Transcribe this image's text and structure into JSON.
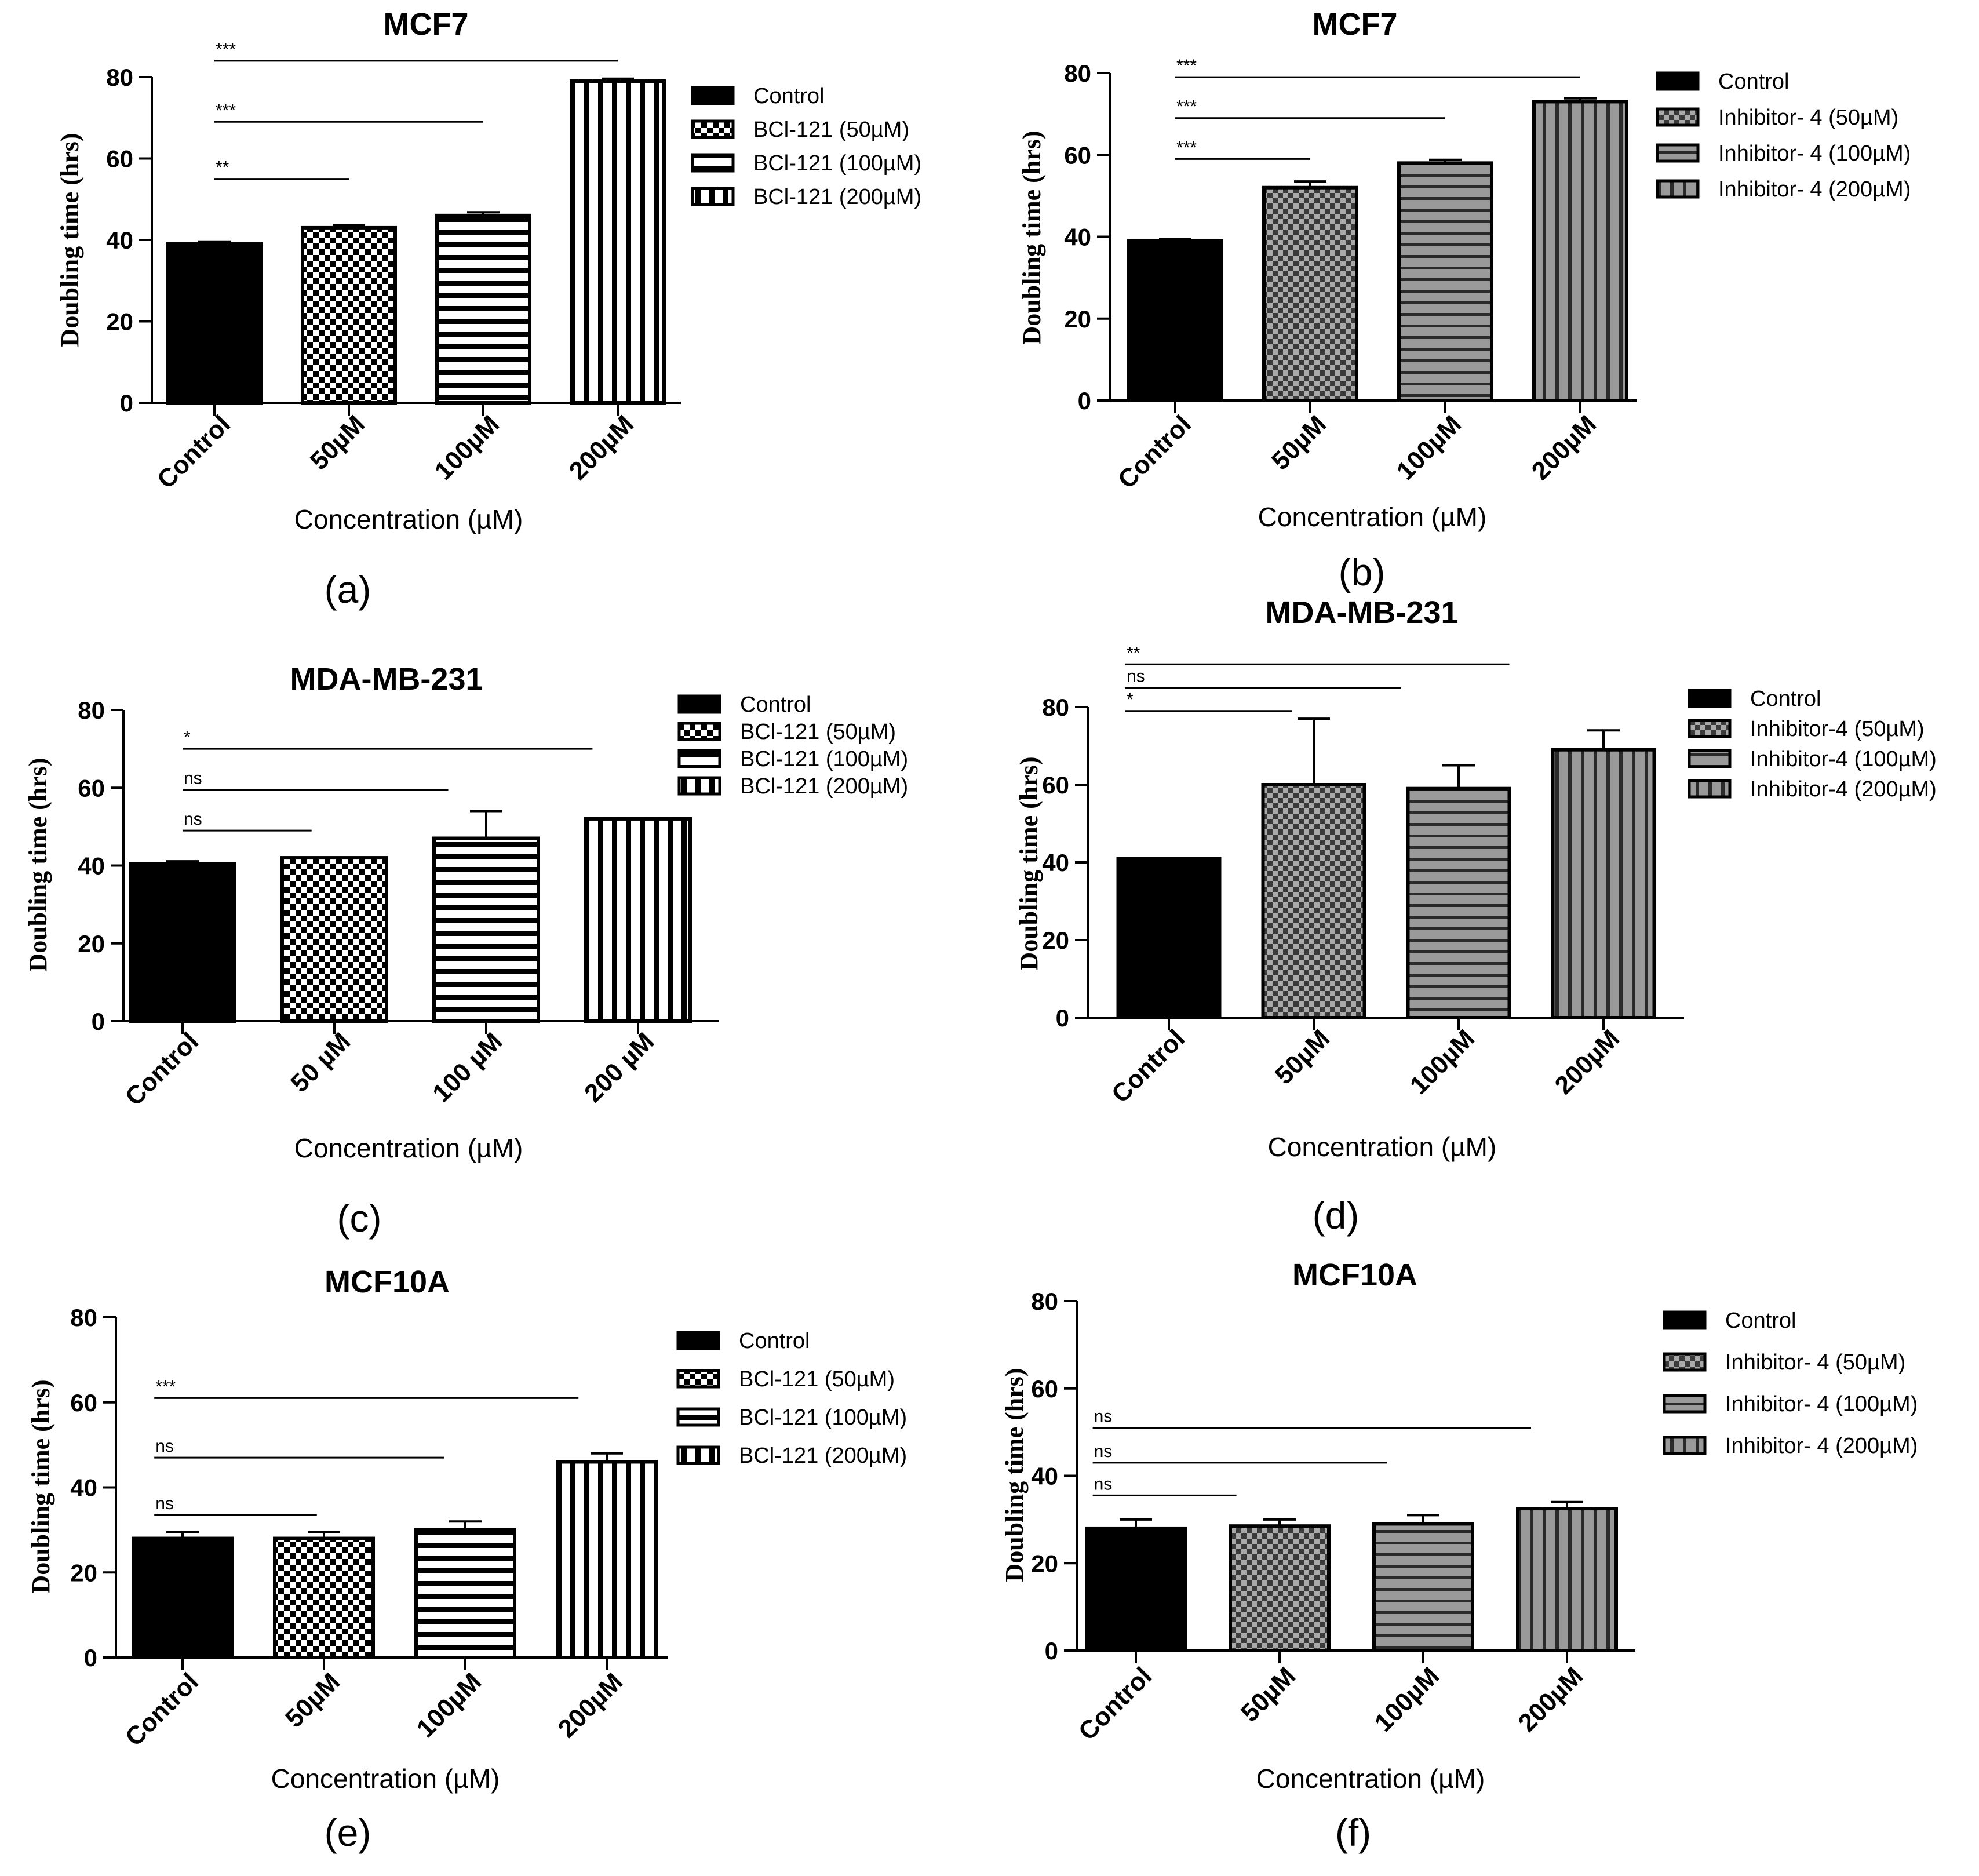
{
  "figure": {
    "panel_labels": [
      "(a)",
      "(b)",
      "(c)",
      "(d)",
      "(e)",
      "(f)"
    ]
  },
  "chart_data": [
    {
      "id": "a",
      "type": "bar",
      "title": "MCF7",
      "xlabel": "Concentration (µM)",
      "ylabel": "Doubling time (hrs)",
      "ylim": [
        0,
        80
      ],
      "yticks": [
        0,
        20,
        40,
        60,
        80
      ],
      "categories": [
        "Control",
        "50µM",
        "100µM",
        "200µM"
      ],
      "values": [
        39,
        43,
        46,
        79
      ],
      "errors": [
        0.6,
        0.6,
        0.8,
        0.6
      ],
      "patterns": [
        "solid",
        "checker",
        "hstripe",
        "vstripe"
      ],
      "legend": [
        "Control",
        "BCl-121 (50µM)",
        "BCl-121 (100µM)",
        "BCl-121 (200µM)"
      ],
      "legend_position": "right",
      "significance": [
        {
          "label": "***",
          "from": 0,
          "to": 3,
          "y": 84
        },
        {
          "label": "***",
          "from": 0,
          "to": 2,
          "y": 69
        },
        {
          "label": "**",
          "from": 0,
          "to": 1,
          "y": 55
        }
      ]
    },
    {
      "id": "b",
      "type": "bar",
      "title": "MCF7",
      "xlabel": "Concentration (µM)",
      "ylabel": "Doubling time (hrs)",
      "ylim": [
        0,
        80
      ],
      "yticks": [
        0,
        20,
        40,
        60,
        80
      ],
      "categories": [
        "Control",
        "50µM",
        "100µM",
        "200µM"
      ],
      "values": [
        39,
        52,
        58,
        73
      ],
      "errors": [
        0.5,
        1.5,
        0.8,
        0.8
      ],
      "patterns": [
        "solid",
        "checker-gray",
        "hstripe-gray",
        "vstripe-gray"
      ],
      "legend": [
        "Control",
        "Inhibitor- 4 (50µM)",
        "Inhibitor- 4 (100µM)",
        "Inhibitor- 4 (200µM)"
      ],
      "legend_position": "right",
      "significance": [
        {
          "label": "***",
          "from": 0,
          "to": 3,
          "y": 79
        },
        {
          "label": "***",
          "from": 0,
          "to": 2,
          "y": 69
        },
        {
          "label": "***",
          "from": 0,
          "to": 1,
          "y": 59
        }
      ]
    },
    {
      "id": "c",
      "type": "bar",
      "title": "MDA-MB-231",
      "xlabel": "Concentration (µM)",
      "ylabel": "Doubling time (hrs)",
      "ylim": [
        0,
        80
      ],
      "yticks": [
        0,
        20,
        40,
        60,
        80
      ],
      "categories": [
        "Control",
        "50 µM",
        "100 µM",
        "200 µM"
      ],
      "values": [
        40.5,
        42,
        47,
        52
      ],
      "errors": [
        0.6,
        0,
        7,
        0
      ],
      "patterns": [
        "solid",
        "checker",
        "hstripe",
        "vstripe"
      ],
      "legend": [
        "Control",
        "BCl-121 (50µM)",
        "BCl-121 (100µM)",
        "BCl-121 (200µM)"
      ],
      "legend_position": "right",
      "significance": [
        {
          "label": "*",
          "from": 0,
          "to": 2.7,
          "y": 70
        },
        {
          "label": "ns",
          "from": 0,
          "to": 1.75,
          "y": 59.5
        },
        {
          "label": "ns",
          "from": 0,
          "to": 0.85,
          "y": 49
        }
      ]
    },
    {
      "id": "d",
      "type": "bar",
      "title": "MDA-MB-231",
      "xlabel": "Concentration (µM)",
      "ylabel": "Doubling time (hrs)",
      "ylim": [
        0,
        80
      ],
      "yticks": [
        0,
        20,
        40,
        60,
        80
      ],
      "categories": [
        "Control",
        "50µM",
        "100µM",
        "200µM"
      ],
      "values": [
        41,
        60,
        59,
        69
      ],
      "errors": [
        0,
        17,
        6,
        5
      ],
      "patterns": [
        "solid",
        "checker-gray",
        "hstripe-gray",
        "vstripe-gray"
      ],
      "legend": [
        "Control",
        "Inhibitor-4 (50µM)",
        "Inhibitor-4 (100µM)",
        "Inhibitor-4 (200µM)"
      ],
      "legend_position": "right",
      "significance": [
        {
          "label": "**",
          "from": -0.3,
          "to": 2.35,
          "y": 91
        },
        {
          "label": "ns",
          "from": -0.3,
          "to": 1.6,
          "y": 85
        },
        {
          "label": "*",
          "from": -0.3,
          "to": 0.85,
          "y": 79
        }
      ]
    },
    {
      "id": "e",
      "type": "bar",
      "title": "MCF10A",
      "xlabel": "Concentration (µM)",
      "ylabel": "Doubling time (hrs)",
      "ylim": [
        0,
        80
      ],
      "yticks": [
        0,
        20,
        40,
        60,
        80
      ],
      "categories": [
        "Control",
        "50µM",
        "100µM",
        "200µM"
      ],
      "values": [
        28,
        28,
        30,
        46
      ],
      "errors": [
        1.5,
        1.5,
        2,
        2
      ],
      "patterns": [
        "solid",
        "checker",
        "hstripe",
        "vstripe"
      ],
      "legend": [
        "Control",
        "BCl-121  (50µM)",
        "BCl-121 (100µM)",
        "BCl-121 (200µM)"
      ],
      "legend_position": "right",
      "significance": [
        {
          "label": "***",
          "from": -0.2,
          "to": 2.8,
          "y": 61
        },
        {
          "label": "ns",
          "from": -0.2,
          "to": 1.85,
          "y": 47
        },
        {
          "label": "ns",
          "from": -0.2,
          "to": 0.95,
          "y": 33.5
        }
      ]
    },
    {
      "id": "f",
      "type": "bar",
      "title": "MCF10A",
      "xlabel": "Concentration (µM)",
      "ylabel": "Doubling time (hrs)",
      "ylim": [
        0,
        80
      ],
      "yticks": [
        0,
        20,
        40,
        60,
        80
      ],
      "categories": [
        "Control",
        "50µM",
        "100µM",
        "200µM"
      ],
      "values": [
        28,
        28.5,
        29,
        32.5
      ],
      "errors": [
        2,
        1.5,
        2,
        1.5
      ],
      "patterns": [
        "solid",
        "checker-gray",
        "hstripe-gray",
        "vstripe-gray"
      ],
      "legend": [
        "Control",
        "Inhibitor- 4 (50µM)",
        "Inhibitor- 4 (100µM)",
        "Inhibitor- 4 (200µM)"
      ],
      "legend_position": "right",
      "significance": [
        {
          "label": "ns",
          "from": -0.3,
          "to": 2.75,
          "y": 51
        },
        {
          "label": "ns",
          "from": -0.3,
          "to": 1.75,
          "y": 43
        },
        {
          "label": "ns",
          "from": -0.3,
          "to": 0.7,
          "y": 35.5
        }
      ]
    }
  ]
}
